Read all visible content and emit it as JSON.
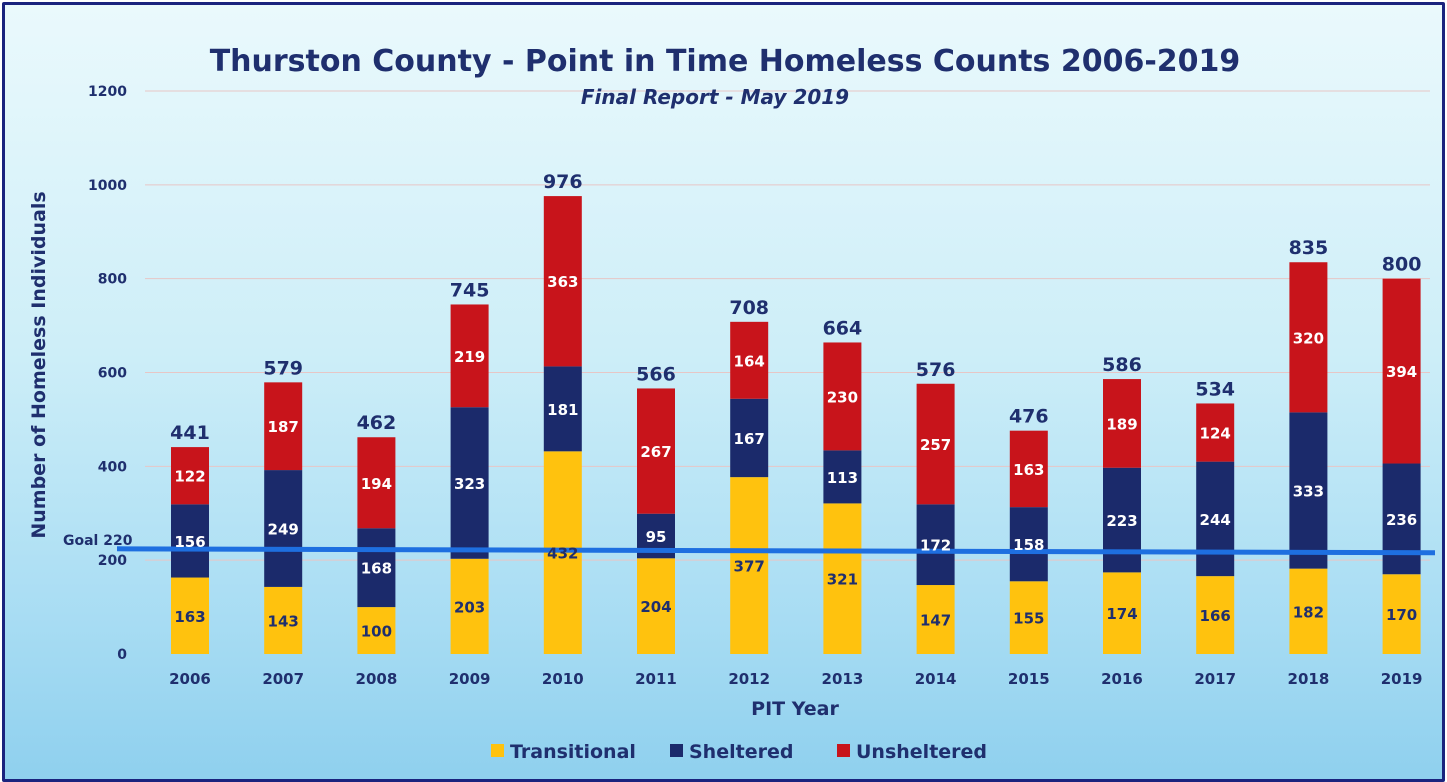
{
  "chart_data": {
    "type": "bar",
    "stacked": true,
    "title": "Thurston County - Point in Time Homeless Counts 2006-2019",
    "subtitle": "Final Report - May 2019",
    "xlabel": "PIT Year",
    "ylabel": "Number of Homeless Individuals",
    "ylim": [
      0,
      1200
    ],
    "yticks": [
      0,
      200,
      400,
      600,
      800,
      1000,
      1200
    ],
    "grid": true,
    "legend_position": "bottom",
    "categories": [
      "2006",
      "2007",
      "2008",
      "2009",
      "2010",
      "2011",
      "2012",
      "2013",
      "2014",
      "2015",
      "2016",
      "2017",
      "2018",
      "2019"
    ],
    "series": [
      {
        "name": "Transitional",
        "color": "#ffc20e",
        "label_color": "#1f2f6e",
        "values": [
          163,
          143,
          100,
          203,
          432,
          204,
          377,
          321,
          147,
          155,
          174,
          166,
          182,
          170
        ]
      },
      {
        "name": "Sheltered",
        "color": "#1b2a6b",
        "label_color": "#ffffff",
        "values": [
          156,
          249,
          168,
          323,
          181,
          95,
          167,
          113,
          172,
          158,
          223,
          244,
          333,
          236
        ]
      },
      {
        "name": "Unsheltered",
        "color": "#c8141b",
        "label_color": "#ffffff",
        "values": [
          122,
          187,
          194,
          219,
          363,
          267,
          164,
          230,
          257,
          163,
          189,
          124,
          320,
          394
        ]
      }
    ],
    "totals": [
      441,
      579,
      462,
      745,
      976,
      566,
      708,
      664,
      576,
      476,
      586,
      534,
      835,
      800
    ],
    "goal": {
      "label": "Goal 220",
      "value": 220,
      "color": "#1e6fe0"
    }
  }
}
